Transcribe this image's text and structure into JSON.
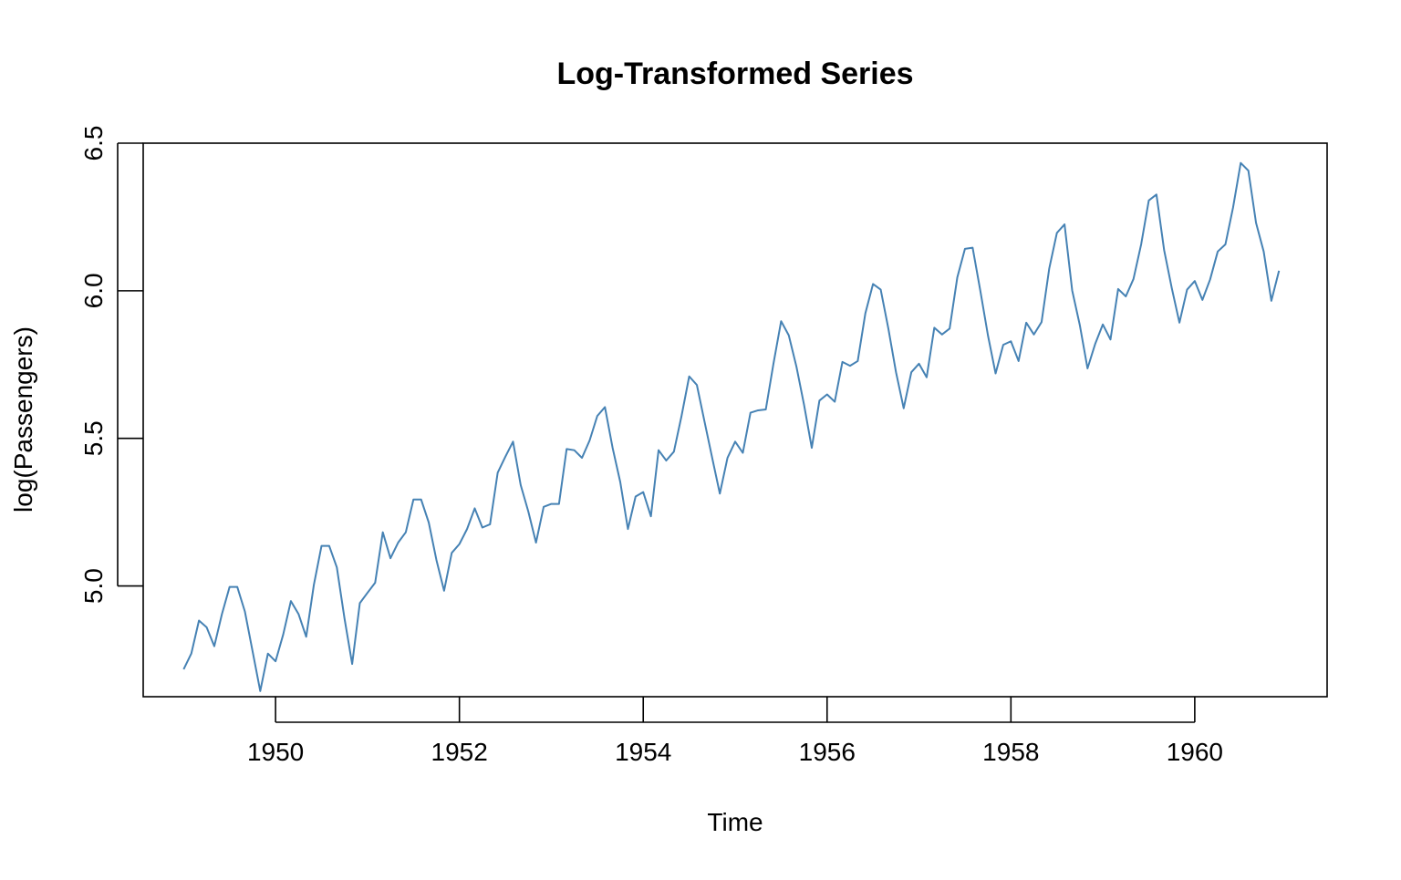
{
  "colors": {
    "line": "#4682B4",
    "axis": "#000000",
    "background": "#ffffff"
  },
  "chart_data": {
    "type": "line",
    "title": "Log-Transformed Series",
    "xlabel": "Time",
    "ylabel": "log(Passengers)",
    "xlim": [
      1948.56,
      1961.44
    ],
    "ylim": [
      4.625,
      6.5
    ],
    "xticks": [
      1950,
      1952,
      1954,
      1956,
      1958,
      1960
    ],
    "xtick_labels": [
      "1950",
      "1952",
      "1954",
      "1956",
      "1958",
      "1960"
    ],
    "yticks": [
      5.0,
      5.5,
      6.0,
      6.5
    ],
    "ytick_labels": [
      "5.0",
      "5.5",
      "6.0",
      "6.5"
    ],
    "grid": false,
    "series": [
      {
        "name": "log(Passengers)",
        "x_start": 1949,
        "frequency": 12,
        "values": [
          4.718,
          4.771,
          4.883,
          4.86,
          4.796,
          4.905,
          4.997,
          4.997,
          4.913,
          4.779,
          4.644,
          4.771,
          4.745,
          4.836,
          4.949,
          4.905,
          4.828,
          5.004,
          5.136,
          5.136,
          5.063,
          4.89,
          4.736,
          4.942,
          4.977,
          5.011,
          5.182,
          5.094,
          5.147,
          5.182,
          5.293,
          5.293,
          5.215,
          5.088,
          4.984,
          5.112,
          5.142,
          5.193,
          5.263,
          5.198,
          5.209,
          5.384,
          5.438,
          5.489,
          5.342,
          5.252,
          5.147,
          5.268,
          5.278,
          5.278,
          5.464,
          5.46,
          5.434,
          5.493,
          5.576,
          5.606,
          5.468,
          5.352,
          5.193,
          5.303,
          5.318,
          5.236,
          5.46,
          5.425,
          5.455,
          5.576,
          5.71,
          5.681,
          5.557,
          5.434,
          5.313,
          5.434,
          5.489,
          5.451,
          5.587,
          5.595,
          5.598,
          5.753,
          5.897,
          5.849,
          5.743,
          5.613,
          5.468,
          5.628,
          5.649,
          5.624,
          5.759,
          5.746,
          5.762,
          5.924,
          6.023,
          6.004,
          5.872,
          5.724,
          5.602,
          5.724,
          5.753,
          5.707,
          5.875,
          5.852,
          5.872,
          6.045,
          6.142,
          6.146,
          6.001,
          5.849,
          5.72,
          5.817,
          5.829,
          5.762,
          5.892,
          5.852,
          5.894,
          6.075,
          6.196,
          6.225,
          6.001,
          5.883,
          5.737,
          5.82,
          5.886,
          5.835,
          6.006,
          5.981,
          6.04,
          6.157,
          6.306,
          6.326,
          6.138,
          6.009,
          5.892,
          6.004,
          6.033,
          5.969,
          6.038,
          6.133,
          6.157,
          6.282,
          6.433,
          6.407,
          6.23,
          6.133,
          5.966,
          6.068
        ]
      }
    ]
  }
}
